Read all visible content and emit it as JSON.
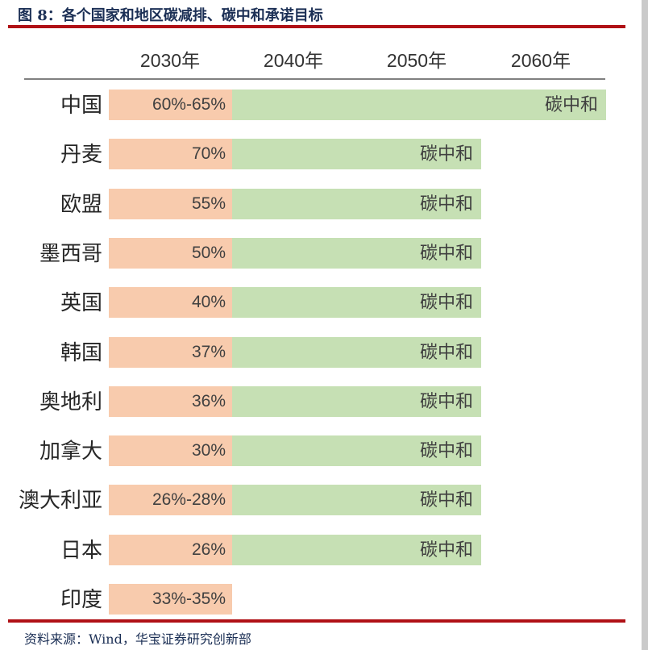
{
  "header": {
    "title": "图 8：各个国家和地区碳减排、碳中和承诺目标"
  },
  "footer": {
    "source": "资料来源：Wind，华宝证券研究创新部"
  },
  "colors": {
    "reduction_bar_orange": "#F8CBAD",
    "neutral_bar_green": "#C6E0B4",
    "accent_red": "#B01116",
    "title_navy": "#1B2F55",
    "header_rule_gray": "#808080",
    "right_strip_gray": "#CACACA"
  },
  "chart_data": {
    "type": "bar",
    "orientation": "horizontal",
    "title": "各个国家和地区碳减排、碳中和承诺目标",
    "columns": [
      "2030年",
      "2040年",
      "2050年",
      "2060年"
    ],
    "neutral_label_text": "碳中和",
    "rows": [
      {
        "country": "中国",
        "target_2030": "60%-65%",
        "neutral": "碳中和",
        "neutral_year": "2060年"
      },
      {
        "country": "丹麦",
        "target_2030": "70%",
        "neutral": "碳中和",
        "neutral_year": "2050年"
      },
      {
        "country": "欧盟",
        "target_2030": "55%",
        "neutral": "碳中和",
        "neutral_year": "2050年"
      },
      {
        "country": "墨西哥",
        "target_2030": "50%",
        "neutral": "碳中和",
        "neutral_year": "2050年"
      },
      {
        "country": "英国",
        "target_2030": "40%",
        "neutral": "碳中和",
        "neutral_year": "2050年"
      },
      {
        "country": "韩国",
        "target_2030": "37%",
        "neutral": "碳中和",
        "neutral_year": "2050年"
      },
      {
        "country": "奥地利",
        "target_2030": "36%",
        "neutral": "碳中和",
        "neutral_year": "2050年"
      },
      {
        "country": "加拿大",
        "target_2030": "30%",
        "neutral": "碳中和",
        "neutral_year": "2050年"
      },
      {
        "country": "澳大利亚",
        "target_2030": "26%-28%",
        "neutral": "碳中和",
        "neutral_year": "2050年"
      },
      {
        "country": "日本",
        "target_2030": "26%",
        "neutral": "碳中和",
        "neutral_year": "2050年"
      },
      {
        "country": "印度",
        "target_2030": "33%-35%",
        "neutral": "",
        "neutral_year": null
      }
    ]
  }
}
